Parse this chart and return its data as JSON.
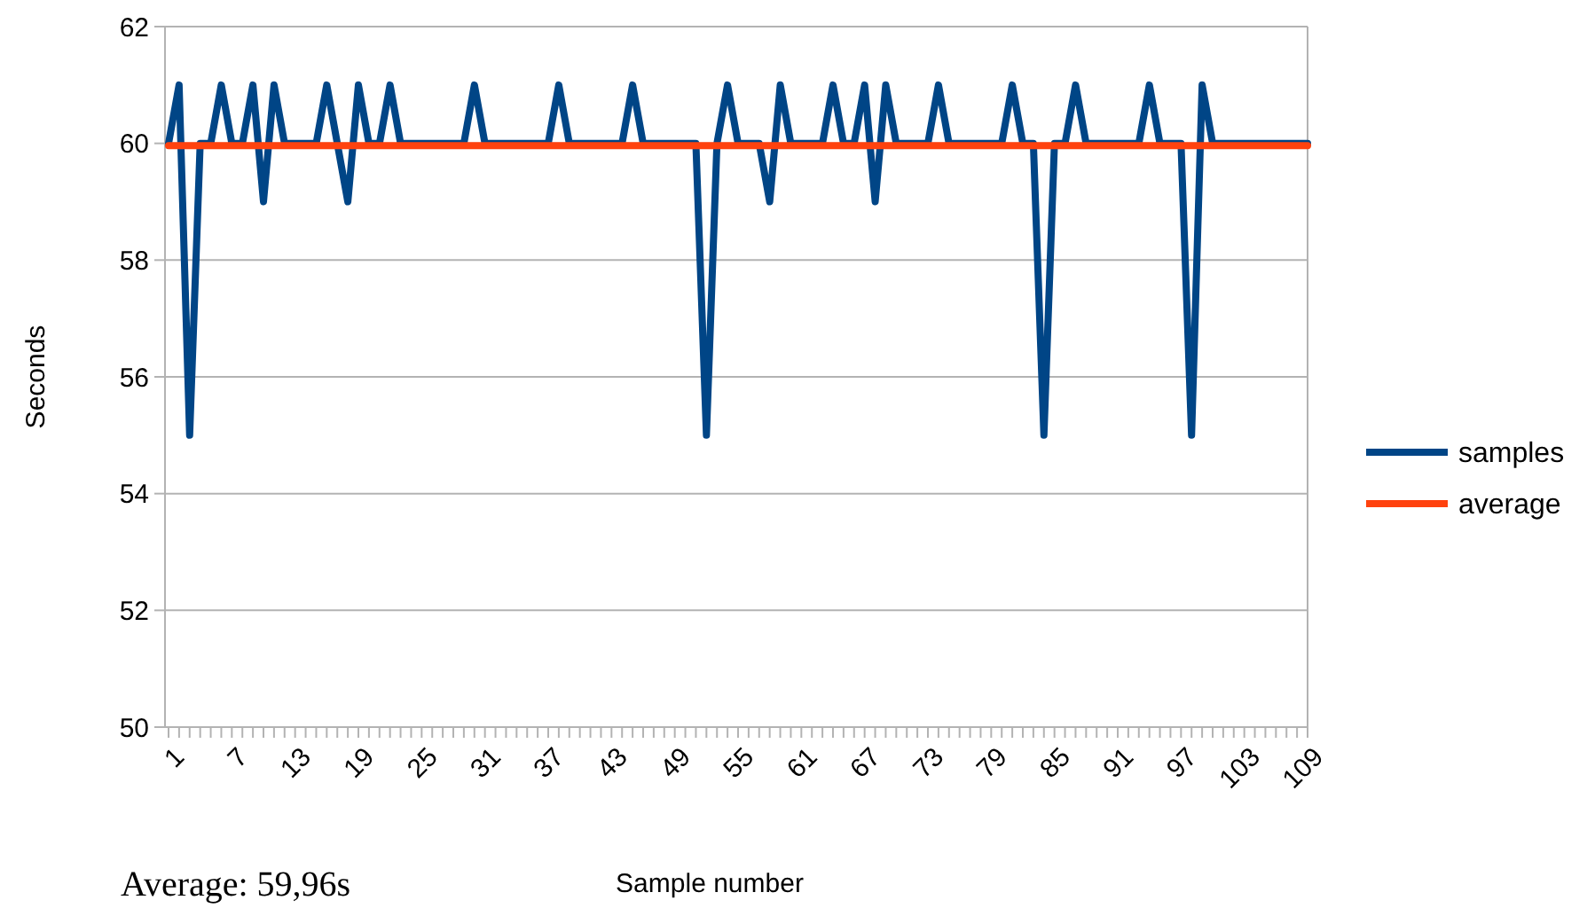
{
  "chart_data": {
    "type": "line",
    "xlabel": "Sample number",
    "ylabel": "Seconds",
    "annotations": [
      "Average: 59,96s"
    ],
    "ylim": [
      50,
      62
    ],
    "yticks": [
      50,
      52,
      54,
      56,
      58,
      60,
      62
    ],
    "grid": "y",
    "legend": "right",
    "marker": "none",
    "line_style": "solid",
    "categories": [
      "1",
      null,
      null,
      null,
      null,
      null,
      "7",
      null,
      null,
      null,
      null,
      null,
      "13",
      null,
      null,
      null,
      null,
      null,
      "19",
      null,
      null,
      null,
      null,
      null,
      "25",
      null,
      null,
      null,
      null,
      null,
      "31",
      null,
      null,
      null,
      null,
      null,
      "37",
      null,
      null,
      null,
      null,
      null,
      "43",
      null,
      null,
      null,
      null,
      null,
      "49",
      null,
      null,
      null,
      null,
      null,
      "55",
      null,
      null,
      null,
      null,
      null,
      "61",
      null,
      null,
      null,
      null,
      null,
      "67",
      null,
      null,
      null,
      null,
      null,
      "73",
      null,
      null,
      null,
      null,
      null,
      "79",
      null,
      null,
      null,
      null,
      null,
      "85",
      null,
      null,
      null,
      null,
      null,
      "91",
      null,
      null,
      null,
      null,
      null,
      "97",
      null,
      null,
      null,
      null,
      null,
      "103",
      null,
      null,
      null,
      null,
      null,
      "109"
    ],
    "series": [
      {
        "name": "samples",
        "color": "#004586",
        "values": [
          60,
          61,
          55,
          60,
          60,
          61,
          60,
          60,
          61,
          59,
          61,
          60,
          60,
          60,
          60,
          61,
          60,
          59,
          61,
          60,
          60,
          61,
          60,
          60,
          60,
          60,
          60,
          60,
          60,
          61,
          60,
          60,
          60,
          60,
          60,
          60,
          60,
          61,
          60,
          60,
          60,
          60,
          60,
          60,
          61,
          60,
          60,
          60,
          60,
          60,
          60,
          55,
          60,
          61,
          60,
          60,
          60,
          59,
          61,
          60,
          60,
          60,
          60,
          61,
          60,
          60,
          61,
          59,
          61,
          60,
          60,
          60,
          60,
          61,
          60,
          60,
          60,
          60,
          60,
          60,
          61,
          60,
          60,
          55,
          60,
          60,
          61,
          60,
          60,
          60,
          60,
          60,
          60,
          61,
          60,
          60,
          60,
          55,
          61,
          60,
          60,
          60,
          60,
          60,
          60,
          60,
          60,
          60,
          60
        ]
      },
      {
        "name": "average",
        "color": "#ff420e",
        "values": [
          59.96,
          59.96,
          59.96,
          59.96,
          59.96,
          59.96,
          59.96,
          59.96,
          59.96,
          59.96,
          59.96,
          59.96,
          59.96,
          59.96,
          59.96,
          59.96,
          59.96,
          59.96,
          59.96,
          59.96,
          59.96,
          59.96,
          59.96,
          59.96,
          59.96,
          59.96,
          59.96,
          59.96,
          59.96,
          59.96,
          59.96,
          59.96,
          59.96,
          59.96,
          59.96,
          59.96,
          59.96,
          59.96,
          59.96,
          59.96,
          59.96,
          59.96,
          59.96,
          59.96,
          59.96,
          59.96,
          59.96,
          59.96,
          59.96,
          59.96,
          59.96,
          59.96,
          59.96,
          59.96,
          59.96,
          59.96,
          59.96,
          59.96,
          59.96,
          59.96,
          59.96,
          59.96,
          59.96,
          59.96,
          59.96,
          59.96,
          59.96,
          59.96,
          59.96,
          59.96,
          59.96,
          59.96,
          59.96,
          59.96,
          59.96,
          59.96,
          59.96,
          59.96,
          59.96,
          59.96,
          59.96,
          59.96,
          59.96,
          59.96,
          59.96,
          59.96,
          59.96,
          59.96,
          59.96,
          59.96,
          59.96,
          59.96,
          59.96,
          59.96,
          59.96,
          59.96,
          59.96,
          59.96,
          59.96,
          59.96,
          59.96,
          59.96,
          59.96,
          59.96,
          59.96,
          59.96,
          59.96,
          59.96,
          59.96
        ]
      }
    ]
  }
}
